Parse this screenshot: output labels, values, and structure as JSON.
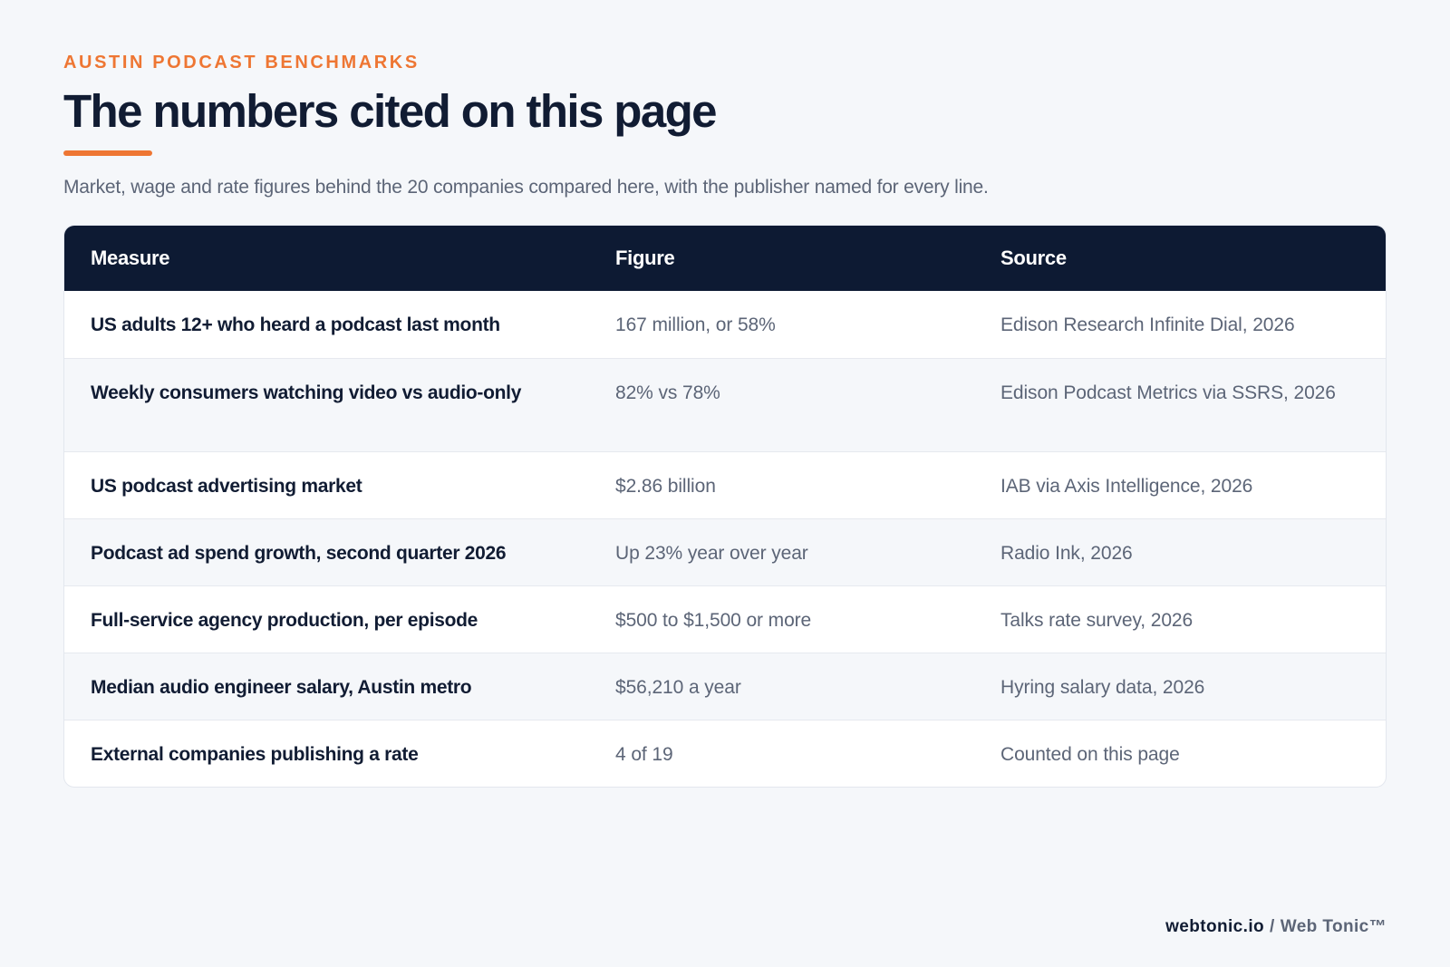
{
  "header": {
    "eyebrow": "AUSTIN PODCAST BENCHMARKS",
    "title": "The numbers cited on this page",
    "subtitle": "Market, wage and rate figures behind the 20 companies compared here, with the publisher named for every line."
  },
  "table": {
    "columns": [
      "Measure",
      "Figure",
      "Source"
    ],
    "rows": [
      {
        "measure": "US adults 12+ who heard a podcast last month",
        "figure": "167 million, or 58%",
        "source": "Edison Research Infinite Dial, 2026"
      },
      {
        "measure": "Weekly consumers watching video vs audio-only",
        "figure": "82% vs 78%",
        "source": "Edison Podcast Metrics via SSRS, 2026"
      },
      {
        "measure": "US podcast advertising market",
        "figure": "$2.86 billion",
        "source": "IAB via Axis Intelligence, 2026"
      },
      {
        "measure": "Podcast ad spend growth, second quarter 2026",
        "figure": "Up 23% year over year",
        "source": "Radio Ink, 2026"
      },
      {
        "measure": "Full-service agency production, per episode",
        "figure": "$500 to $1,500 or more",
        "source": "Talks rate survey, 2026"
      },
      {
        "measure": "Median audio engineer salary, Austin metro",
        "figure": "$56,210 a year",
        "source": "Hyring salary data, 2026"
      },
      {
        "measure": "External companies publishing a rate",
        "figure": "4 of 19",
        "source": "Counted on this page"
      }
    ]
  },
  "footer": {
    "domain": "webtonic.io",
    "separator": "/",
    "brand": "Web Tonic™"
  },
  "colors": {
    "accent": "#ee7633",
    "header_bg": "#0d1a33",
    "text_dark": "#111c33",
    "text_muted": "#5c6577"
  }
}
